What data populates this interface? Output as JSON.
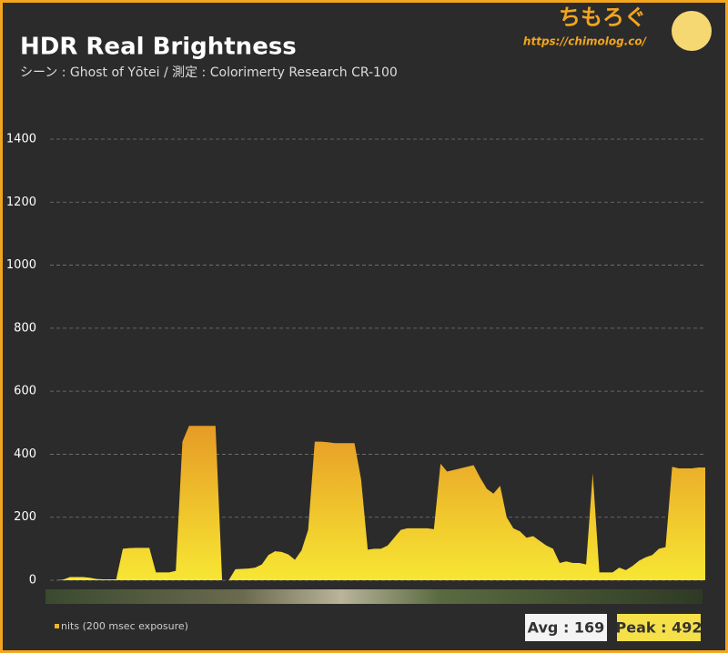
{
  "chart_data": {
    "type": "area",
    "title": "HDR Real Brightness",
    "subtitle": "シーン : Ghost of Yōtei / 測定 : Colorimerty Research CR-100",
    "brand": "ちもろぐ",
    "brand_url": "https://chimolog.co/",
    "series": [
      {
        "name": "nits (200 msec exposure)",
        "color": "#f0b429",
        "values": [
          0,
          0,
          2,
          10,
          10,
          10,
          8,
          4,
          3,
          3,
          3,
          100,
          102,
          103,
          103,
          103,
          25,
          25,
          25,
          30,
          440,
          490,
          490,
          490,
          490,
          490,
          0,
          0,
          35,
          36,
          37,
          40,
          50,
          80,
          92,
          90,
          82,
          65,
          95,
          160,
          440,
          440,
          438,
          435,
          435,
          435,
          435,
          320,
          97,
          100,
          100,
          110,
          135,
          160,
          165,
          165,
          165,
          165,
          162,
          370,
          345,
          350,
          355,
          360,
          365,
          325,
          290,
          275,
          300,
          200,
          165,
          155,
          135,
          140,
          125,
          110,
          100,
          55,
          60,
          55,
          55,
          50,
          340,
          25,
          25,
          25,
          40,
          32,
          45,
          62,
          73,
          80,
          100,
          105,
          360,
          355,
          355,
          355,
          358,
          358
        ]
      }
    ],
    "ylim": [
      0,
      1400
    ],
    "yticks": [
      0,
      200,
      400,
      600,
      800,
      1000,
      1200,
      1400
    ],
    "grid": true,
    "stats": [
      {
        "value": 169,
        "label": "Avg : 169"
      },
      {
        "value": 492,
        "label": "Peak : 492"
      }
    ]
  }
}
